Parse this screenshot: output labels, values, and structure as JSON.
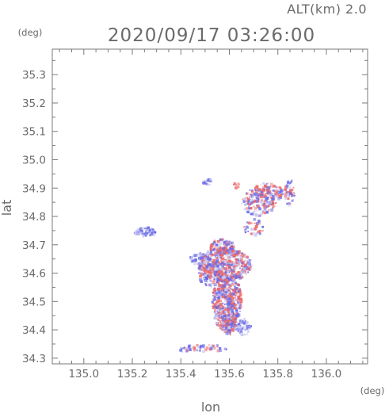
{
  "chart_data": {
    "type": "heatmap",
    "title": "2020/09/17 03:26:00",
    "subtitle": "ALT(km) 2.0",
    "xlabel": "lon",
    "ylabel": "lat",
    "x_unit": "(deg)",
    "y_unit": "(deg)",
    "xlim": [
      134.87,
      136.17
    ],
    "ylim": [
      34.28,
      35.39
    ],
    "x_ticks": [
      "135.0",
      "135.2",
      "135.4",
      "135.6",
      "135.8",
      "136.0"
    ],
    "y_ticks": [
      "34.3",
      "34.4",
      "34.5",
      "34.6",
      "34.7",
      "34.8",
      "34.9",
      "35.0",
      "35.1",
      "35.2",
      "35.3"
    ],
    "grid": false,
    "colors": {
      "positive": "#ee6a6a",
      "negative": "#6a6ae6",
      "neutral": "#c9c9f2",
      "axis": "#7a7a7a"
    },
    "regions": [
      {
        "lon": 135.25,
        "lat": 34.745,
        "rx": 0.045,
        "ry": 0.018,
        "tone": "negative",
        "density": 0.95
      },
      {
        "lon": 135.58,
        "lat": 34.63,
        "rx": 0.11,
        "ry": 0.06,
        "tone": "mixed",
        "density": 0.85
      },
      {
        "lon": 135.57,
        "lat": 34.69,
        "rx": 0.05,
        "ry": 0.03,
        "tone": "mixed",
        "density": 0.8
      },
      {
        "lon": 135.59,
        "lat": 34.5,
        "rx": 0.06,
        "ry": 0.11,
        "tone": "mixed",
        "density": 0.85
      },
      {
        "lon": 135.6,
        "lat": 34.42,
        "rx": 0.03,
        "ry": 0.04,
        "tone": "mixed",
        "density": 0.7
      },
      {
        "lon": 135.66,
        "lat": 34.41,
        "rx": 0.03,
        "ry": 0.03,
        "tone": "negative",
        "density": 0.6
      },
      {
        "lon": 135.48,
        "lat": 34.65,
        "rx": 0.04,
        "ry": 0.02,
        "tone": "negative",
        "density": 0.55
      },
      {
        "lon": 135.72,
        "lat": 34.85,
        "rx": 0.07,
        "ry": 0.05,
        "tone": "mixed",
        "density": 0.45
      },
      {
        "lon": 135.76,
        "lat": 34.88,
        "rx": 0.06,
        "ry": 0.04,
        "tone": "mixed",
        "density": 0.5
      },
      {
        "lon": 135.85,
        "lat": 34.88,
        "rx": 0.02,
        "ry": 0.05,
        "tone": "mixed",
        "density": 0.5
      },
      {
        "lon": 135.7,
        "lat": 34.76,
        "rx": 0.04,
        "ry": 0.03,
        "tone": "mixed",
        "density": 0.35
      },
      {
        "lon": 135.51,
        "lat": 34.92,
        "rx": 0.02,
        "ry": 0.012,
        "tone": "negative",
        "density": 0.6
      },
      {
        "lon": 135.63,
        "lat": 34.91,
        "rx": 0.015,
        "ry": 0.01,
        "tone": "positive",
        "density": 0.5
      },
      {
        "lon": 135.5,
        "lat": 34.335,
        "rx": 0.1,
        "ry": 0.012,
        "tone": "mixed",
        "density": 0.4
      },
      {
        "lon": 135.41,
        "lat": 34.33,
        "rx": 0.03,
        "ry": 0.008,
        "tone": "negative",
        "density": 0.6
      },
      {
        "lon": 135.52,
        "lat": 34.6,
        "rx": 0.05,
        "ry": 0.05,
        "tone": "mixed",
        "density": 0.35
      }
    ]
  }
}
